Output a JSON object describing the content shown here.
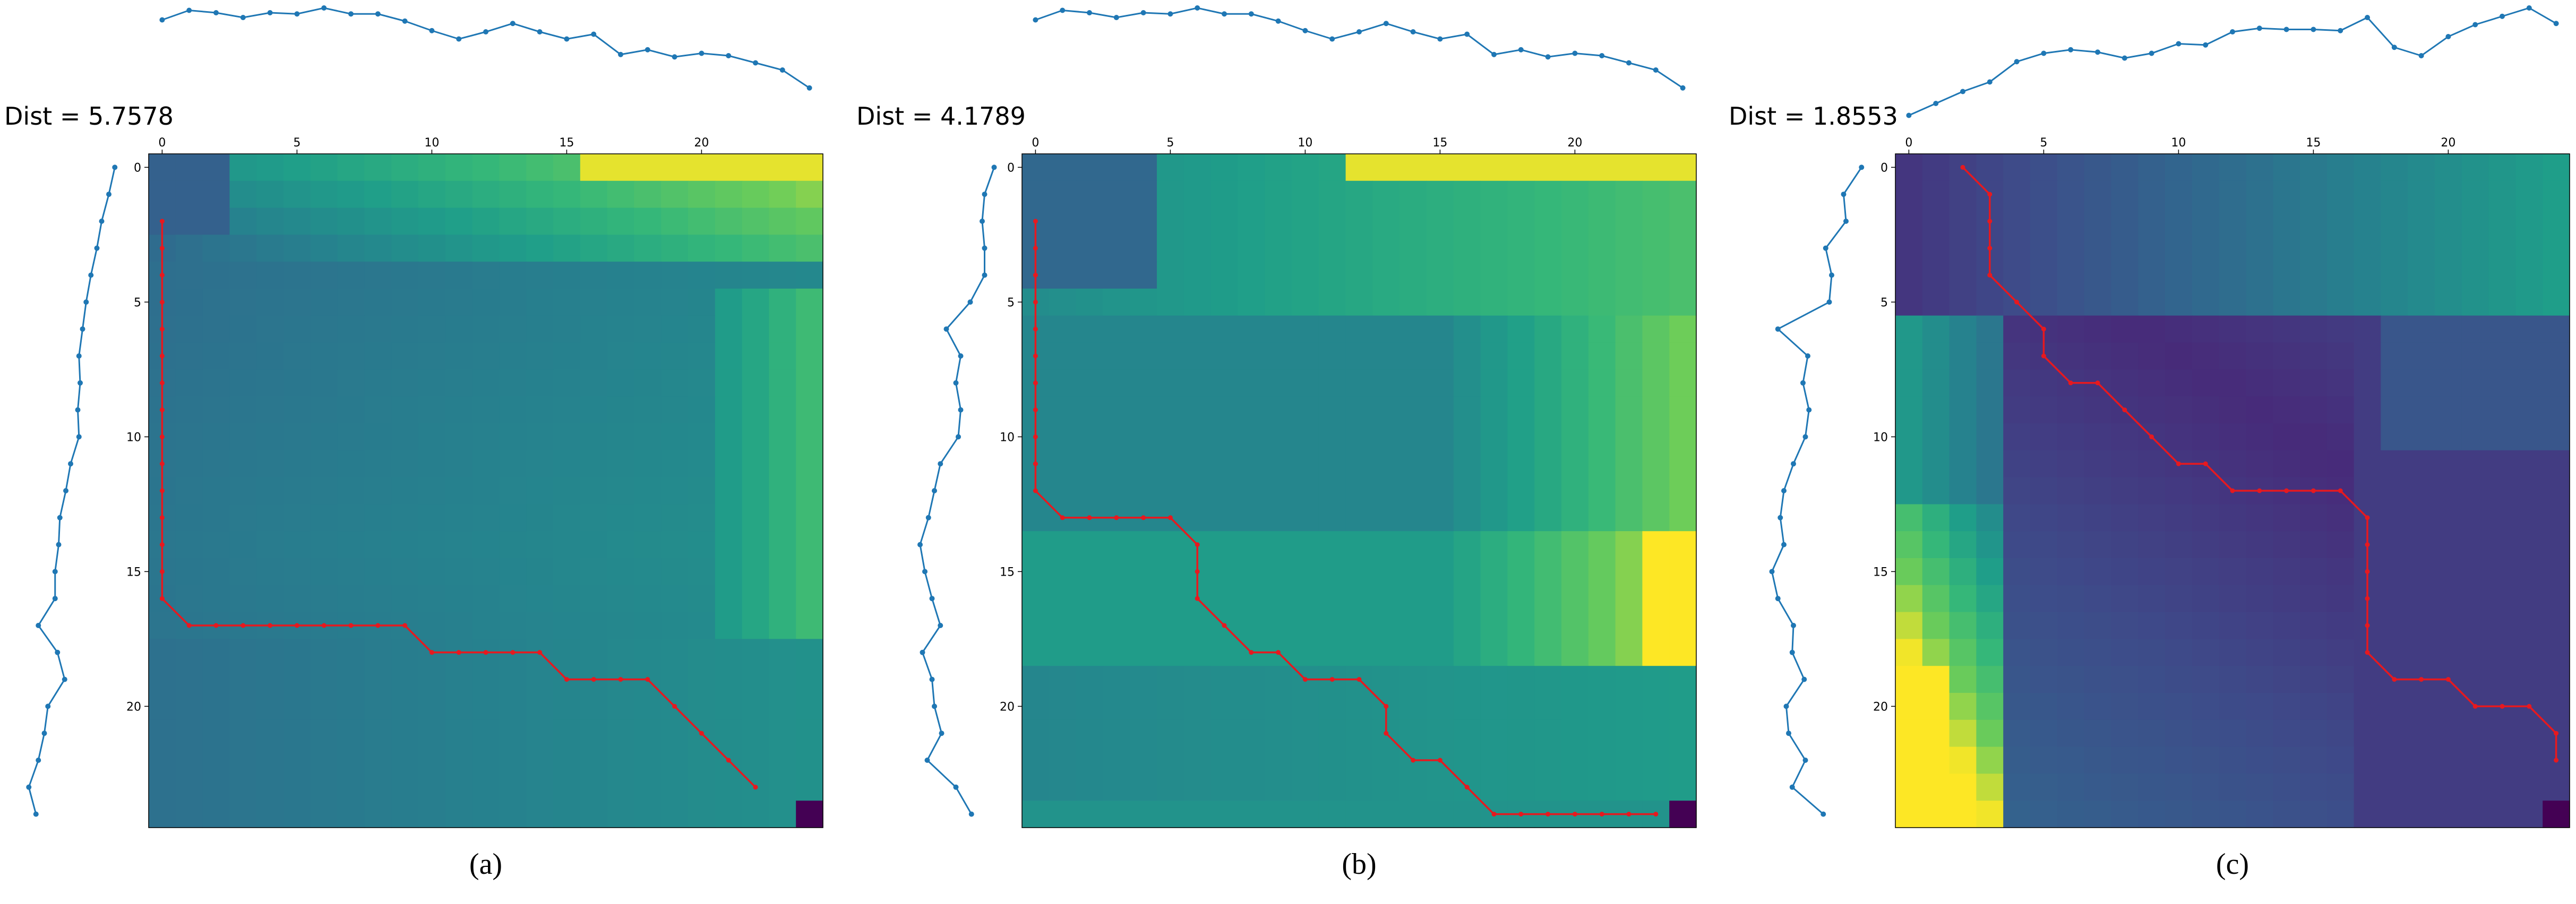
{
  "colors": {
    "series": "#1f77b4",
    "path": "#e6191f",
    "colormap": "viridis"
  },
  "chart_data": [
    {
      "type": "heatmap",
      "title": "Dist = 5.7578",
      "caption": "(a)",
      "xticks": [
        0,
        5,
        10,
        15,
        20
      ],
      "yticks": [
        0,
        5,
        10,
        15,
        20
      ],
      "xlim": [
        0,
        24
      ],
      "ylim": [
        0,
        24
      ],
      "top_series": {
        "x": [
          0,
          1,
          2,
          3,
          4,
          5,
          6,
          7,
          8,
          9,
          10,
          11,
          12,
          13,
          14,
          15,
          16,
          17,
          18,
          19,
          20,
          21,
          22,
          23,
          24
        ],
        "y": [
          0.9,
          0.98,
          0.96,
          0.92,
          0.96,
          0.95,
          1.0,
          0.95,
          0.95,
          0.89,
          0.81,
          0.74,
          0.8,
          0.87,
          0.8,
          0.74,
          0.78,
          0.61,
          0.65,
          0.59,
          0.62,
          0.6,
          0.54,
          0.48,
          0.33
        ]
      },
      "left_series": {
        "x": [
          0.85,
          0.8,
          0.74,
          0.7,
          0.65,
          0.61,
          0.58,
          0.55,
          0.56,
          0.54,
          0.55,
          0.48,
          0.44,
          0.39,
          0.38,
          0.35,
          0.35,
          0.21,
          0.37,
          0.43,
          0.29,
          0.26,
          0.21,
          0.13,
          0.19
        ],
        "y": [
          0,
          1,
          2,
          3,
          4,
          5,
          6,
          7,
          8,
          9,
          10,
          11,
          12,
          13,
          14,
          15,
          16,
          17,
          18,
          19,
          20,
          21,
          22,
          23,
          24
        ]
      },
      "matrix_description": "cost matrix, high (yellow) at top-right, mid-teal elsewhere, dark corner at bottom-right",
      "warping_path": [
        [
          0,
          2
        ],
        [
          0,
          3
        ],
        [
          0,
          4
        ],
        [
          0,
          5
        ],
        [
          0,
          6
        ],
        [
          0,
          7
        ],
        [
          0,
          8
        ],
        [
          0,
          9
        ],
        [
          0,
          10
        ],
        [
          0,
          11
        ],
        [
          0,
          12
        ],
        [
          0,
          13
        ],
        [
          0,
          14
        ],
        [
          0,
          15
        ],
        [
          0,
          16
        ],
        [
          1,
          17
        ],
        [
          2,
          17
        ],
        [
          3,
          17
        ],
        [
          4,
          17
        ],
        [
          5,
          17
        ],
        [
          6,
          17
        ],
        [
          7,
          17
        ],
        [
          8,
          17
        ],
        [
          9,
          17
        ],
        [
          10,
          18
        ],
        [
          11,
          18
        ],
        [
          12,
          18
        ],
        [
          13,
          18
        ],
        [
          14,
          18
        ],
        [
          15,
          19
        ],
        [
          16,
          19
        ],
        [
          17,
          19
        ],
        [
          18,
          19
        ],
        [
          19,
          20
        ],
        [
          20,
          21
        ],
        [
          21,
          22
        ],
        [
          22,
          23
        ]
      ],
      "value_range": [
        0,
        1
      ]
    },
    {
      "type": "heatmap",
      "title": "Dist = 4.1789",
      "caption": "(b)",
      "xticks": [
        0,
        5,
        10,
        15,
        20
      ],
      "yticks": [
        0,
        5,
        10,
        15,
        20
      ],
      "xlim": [
        0,
        24
      ],
      "ylim": [
        0,
        24
      ],
      "top_series": {
        "x": [
          0,
          1,
          2,
          3,
          4,
          5,
          6,
          7,
          8,
          9,
          10,
          11,
          12,
          13,
          14,
          15,
          16,
          17,
          18,
          19,
          20,
          21,
          22,
          23,
          24
        ],
        "y": [
          0.9,
          0.98,
          0.96,
          0.92,
          0.96,
          0.95,
          1.0,
          0.95,
          0.95,
          0.89,
          0.81,
          0.74,
          0.8,
          0.87,
          0.8,
          0.74,
          0.78,
          0.61,
          0.65,
          0.59,
          0.62,
          0.6,
          0.54,
          0.48,
          0.33
        ]
      },
      "left_series": {
        "x": [
          0.9,
          0.82,
          0.8,
          0.82,
          0.82,
          0.7,
          0.5,
          0.62,
          0.58,
          0.62,
          0.6,
          0.45,
          0.4,
          0.35,
          0.28,
          0.32,
          0.38,
          0.45,
          0.3,
          0.38,
          0.4,
          0.46,
          0.34,
          0.58,
          0.71
        ],
        "y": [
          0,
          1,
          2,
          3,
          4,
          5,
          6,
          7,
          8,
          9,
          10,
          11,
          12,
          13,
          14,
          15,
          16,
          17,
          18,
          19,
          20,
          21,
          22,
          23,
          24
        ]
      },
      "matrix_description": "cost matrix, yellow bright top rows and right columns rows 14-18, mid-teal elsewhere, dark corner at bottom-right",
      "warping_path": [
        [
          0,
          2
        ],
        [
          0,
          3
        ],
        [
          0,
          4
        ],
        [
          0,
          5
        ],
        [
          0,
          6
        ],
        [
          0,
          7
        ],
        [
          0,
          8
        ],
        [
          0,
          9
        ],
        [
          0,
          10
        ],
        [
          0,
          11
        ],
        [
          0,
          12
        ],
        [
          1,
          13
        ],
        [
          2,
          13
        ],
        [
          3,
          13
        ],
        [
          4,
          13
        ],
        [
          5,
          13
        ],
        [
          6,
          14
        ],
        [
          6,
          15
        ],
        [
          6,
          16
        ],
        [
          7,
          17
        ],
        [
          8,
          18
        ],
        [
          9,
          18
        ],
        [
          10,
          19
        ],
        [
          11,
          19
        ],
        [
          12,
          19
        ],
        [
          13,
          20
        ],
        [
          13,
          21
        ],
        [
          14,
          22
        ],
        [
          15,
          22
        ],
        [
          16,
          23
        ],
        [
          17,
          24
        ],
        [
          18,
          24
        ],
        [
          19,
          24
        ],
        [
          20,
          24
        ],
        [
          21,
          24
        ],
        [
          22,
          24
        ],
        [
          23,
          24
        ]
      ],
      "value_range": [
        0,
        1
      ]
    },
    {
      "type": "heatmap",
      "title": "Dist = 1.8553",
      "caption": "(c)",
      "xticks": [
        0,
        5,
        10,
        15,
        20
      ],
      "yticks": [
        0,
        5,
        10,
        15,
        20
      ],
      "xlim": [
        0,
        24
      ],
      "ylim": [
        0,
        24
      ],
      "top_series": {
        "x": [
          0,
          1,
          2,
          3,
          4,
          5,
          6,
          7,
          8,
          9,
          10,
          11,
          12,
          13,
          14,
          15,
          16,
          17,
          18,
          19,
          20,
          21,
          22,
          23,
          24
        ],
        "y": [
          0.1,
          0.2,
          0.3,
          0.38,
          0.55,
          0.62,
          0.65,
          0.63,
          0.58,
          0.62,
          0.7,
          0.69,
          0.8,
          0.83,
          0.82,
          0.82,
          0.81,
          0.92,
          0.67,
          0.6,
          0.76,
          0.86,
          0.93,
          1.0,
          0.87
        ]
      },
      "left_series": {
        "x": [
          0.85,
          0.7,
          0.72,
          0.55,
          0.6,
          0.58,
          0.15,
          0.4,
          0.36,
          0.41,
          0.38,
          0.28,
          0.2,
          0.17,
          0.2,
          0.1,
          0.15,
          0.28,
          0.27,
          0.37,
          0.22,
          0.24,
          0.38,
          0.27,
          0.53
        ],
        "y": [
          0,
          1,
          2,
          3,
          4,
          5,
          6,
          7,
          8,
          9,
          10,
          11,
          12,
          13,
          14,
          15,
          16,
          17,
          18,
          19,
          20,
          21,
          22,
          23,
          24
        ]
      },
      "matrix_description": "cost matrix, mostly dark purple/blue, yellow-green at left columns of lower rows, dark corner at bottom-right",
      "warping_path": [
        [
          2,
          0
        ],
        [
          3,
          1
        ],
        [
          3,
          2
        ],
        [
          3,
          3
        ],
        [
          3,
          4
        ],
        [
          4,
          5
        ],
        [
          5,
          6
        ],
        [
          5,
          7
        ],
        [
          6,
          8
        ],
        [
          7,
          8
        ],
        [
          8,
          9
        ],
        [
          9,
          10
        ],
        [
          10,
          11
        ],
        [
          11,
          11
        ],
        [
          12,
          12
        ],
        [
          13,
          12
        ],
        [
          14,
          12
        ],
        [
          15,
          12
        ],
        [
          16,
          12
        ],
        [
          17,
          13
        ],
        [
          17,
          14
        ],
        [
          17,
          15
        ],
        [
          17,
          16
        ],
        [
          17,
          17
        ],
        [
          17,
          18
        ],
        [
          18,
          19
        ],
        [
          19,
          19
        ],
        [
          20,
          19
        ],
        [
          21,
          20
        ],
        [
          22,
          20
        ],
        [
          23,
          20
        ],
        [
          24,
          21
        ],
        [
          24,
          22
        ]
      ],
      "value_range": [
        0,
        1
      ]
    }
  ]
}
